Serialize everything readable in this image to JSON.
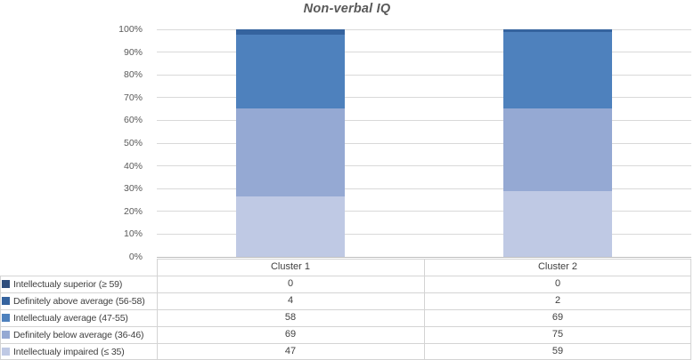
{
  "chart_data": {
    "type": "bar",
    "variant": "100-percent-stacked-column",
    "title": "Non-verbal IQ",
    "categories": [
      "Cluster 1",
      "Cluster 2"
    ],
    "series": [
      {
        "name": "Intellectualy superior (≥ 59)",
        "color": "#2E4D7C",
        "values": [
          0,
          0
        ]
      },
      {
        "name": "Definitely above average (56-58)",
        "color": "#35639E",
        "values": [
          4,
          2
        ]
      },
      {
        "name": "Intellectualy average (47-55)",
        "color": "#4E81BD",
        "values": [
          58,
          69
        ]
      },
      {
        "name": "Definitely below average (36-46)",
        "color": "#95A9D3",
        "values": [
          69,
          75
        ]
      },
      {
        "name": "Intellectualy impaired (≤ 35)",
        "color": "#BFC9E4",
        "values": [
          47,
          59
        ]
      }
    ],
    "xlabel": "",
    "ylabel": "",
    "ylim": [
      0,
      100
    ],
    "y_tick_step": 10,
    "y_ticks": [
      "0%",
      "10%",
      "20%",
      "30%",
      "40%",
      "50%",
      "60%",
      "70%",
      "80%",
      "90%",
      "100%"
    ],
    "gridlines": true,
    "legend_position": "data-table-left"
  },
  "colors": {
    "title_text": "#595959",
    "axis_text": "#595959",
    "table_text": "#404040",
    "gridline": "#D9D9D9",
    "axis_line": "#BFBFBF",
    "table_border": "#D4D4D4",
    "background": "#FFFFFF"
  }
}
